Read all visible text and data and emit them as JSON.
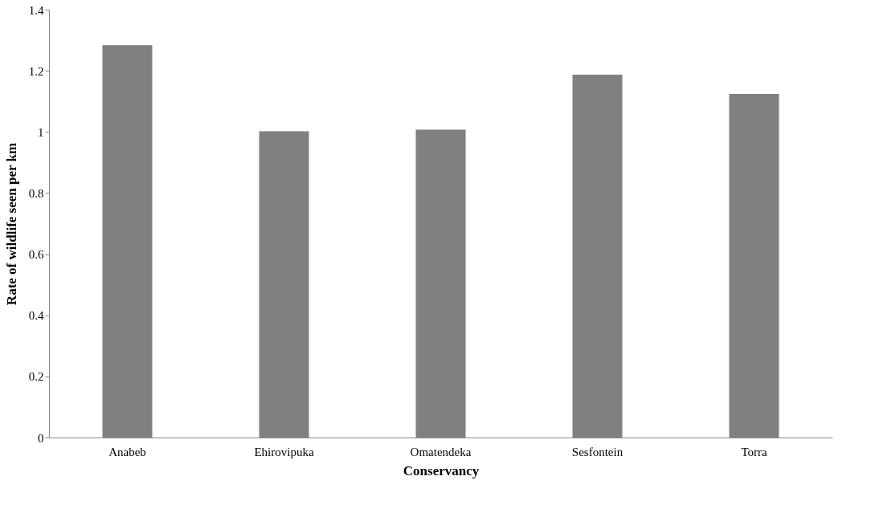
{
  "chart_data": {
    "type": "bar",
    "xlabel": "Conservancy",
    "ylabel": "Rate of wildlife seen per km",
    "categories": [
      "Anabeb",
      "Ehirovipuka",
      "Omatendeka",
      "Sesfontein",
      "Torra"
    ],
    "values": [
      1.284,
      1.002,
      1.007,
      1.187,
      1.124
    ],
    "color": "#808080",
    "ylim": [
      0,
      1.4
    ],
    "yticks": [
      0,
      0.2,
      0.4,
      0.6,
      0.8,
      1,
      1.2,
      1.4
    ],
    "grid": false
  }
}
